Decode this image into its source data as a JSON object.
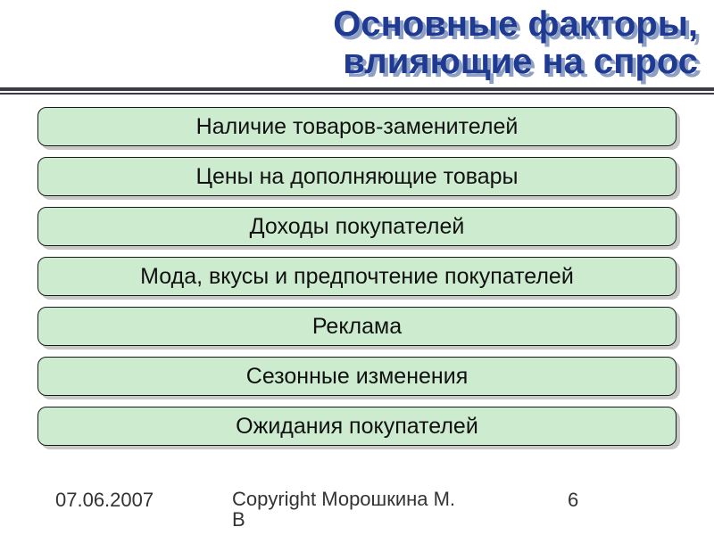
{
  "title": {
    "line1": "Основные факторы,",
    "line2": "влияющие на спрос",
    "color": "#1f3a93",
    "shadow_color": "#7a8fb8",
    "fontsize": 40,
    "fontweight": "bold"
  },
  "divider": {
    "thick_color": "#3a3a48",
    "thick_width": 4,
    "thin_width": 2
  },
  "boxes": {
    "items": [
      "Наличие товаров-заменителей",
      "Цены на дополняющие товары",
      "Доходы покупателей",
      "Мода, вкусы и предпочтение покупателей",
      "Реклама",
      "Сезонные изменения",
      "Ожидания покупателей"
    ],
    "fill_color": "#cdeccf",
    "border_color": "#1a1a1a",
    "shadow_color": "#c8c8c8",
    "border_radius": 10,
    "fontsize": 25,
    "text_color": "#111111"
  },
  "footer": {
    "date": "07.06.2007",
    "copyright_line1": "Copyright Морошкина М.",
    "copyright_line2": "В",
    "page_number": "6",
    "fontsize": 22,
    "color": "#333333"
  },
  "layout": {
    "slide_width": 800,
    "slide_height": 600,
    "background_color": "#ffffff"
  }
}
